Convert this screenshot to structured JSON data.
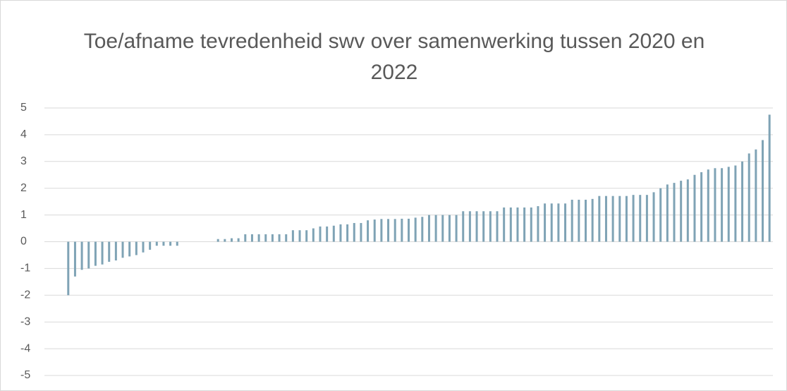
{
  "chart_data": {
    "type": "bar",
    "title": "Toe/afname tevredenheid swv over samenwerking tussen 2020 en 2022",
    "values": [
      null,
      null,
      null,
      -2.0,
      -1.3,
      -1.05,
      -1.0,
      -0.9,
      -0.85,
      -0.75,
      -0.7,
      -0.6,
      -0.55,
      -0.5,
      -0.4,
      -0.3,
      -0.15,
      -0.15,
      -0.15,
      -0.15,
      0,
      0,
      0,
      0,
      0,
      0.1,
      0.1,
      0.13,
      0.13,
      0.28,
      0.28,
      0.28,
      0.28,
      0.28,
      0.28,
      0.28,
      0.43,
      0.43,
      0.43,
      0.5,
      0.57,
      0.57,
      0.6,
      0.65,
      0.65,
      0.7,
      0.7,
      0.8,
      0.83,
      0.85,
      0.85,
      0.85,
      0.86,
      0.86,
      0.9,
      0.93,
      1.0,
      1.0,
      1.0,
      1.0,
      1.0,
      1.14,
      1.14,
      1.14,
      1.14,
      1.14,
      1.14,
      1.28,
      1.28,
      1.28,
      1.28,
      1.28,
      1.33,
      1.43,
      1.43,
      1.43,
      1.43,
      1.57,
      1.57,
      1.57,
      1.6,
      1.71,
      1.71,
      1.71,
      1.71,
      1.71,
      1.75,
      1.75,
      1.75,
      1.85,
      2.0,
      2.14,
      2.2,
      2.28,
      2.33,
      2.5,
      2.6,
      2.7,
      2.75,
      2.75,
      2.8,
      2.85,
      3.0,
      3.3,
      3.45,
      3.8,
      4.75
    ],
    "color": "#7fa3b5",
    "ylim": [
      -5,
      5
    ],
    "yticks": [
      -5,
      -4,
      -3,
      -2,
      -1,
      0,
      1,
      2,
      3,
      4,
      5
    ],
    "grid": true
  }
}
